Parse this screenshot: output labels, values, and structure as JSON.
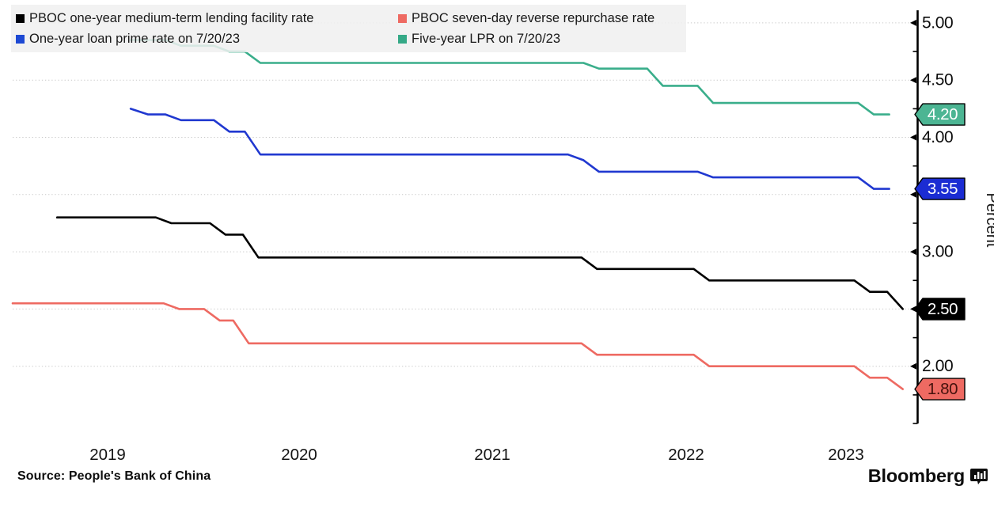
{
  "legend": {
    "items": [
      {
        "label": "PBOC one-year medium-term lending facility rate",
        "color": "#000000"
      },
      {
        "label": "One-year loan prime rate on 7/20/23",
        "color": "#1d49d3"
      },
      {
        "label": "PBOC seven-day reverse repurchase rate",
        "color": "#ee6a62"
      },
      {
        "label": "Five-year LPR on 7/20/23",
        "color": "#35a987"
      }
    ]
  },
  "chart_data": {
    "type": "line",
    "title": "",
    "xlabel": "",
    "ylabel": "Percent",
    "xlim": [
      2019.02,
      2023.65
    ],
    "ylim": [
      1.5,
      5.11
    ],
    "x_year_labels": [
      "2019",
      "2020",
      "2021",
      "2022",
      "2023"
    ],
    "y_ticks_major": [
      5.0,
      4.5,
      4.0,
      3.5,
      3.0,
      2.5,
      2.0
    ],
    "y_ticks_minor": [
      4.75,
      4.25,
      3.75,
      3.25,
      2.75,
      2.25,
      1.75,
      1.5
    ],
    "grid": "horizontal dotted at 0.50 steps",
    "legend_position": "top-left overlay",
    "axis_side": "right",
    "series": [
      {
        "name": "PBOC one-year medium-term lending facility rate",
        "color": "#000000",
        "end_label": {
          "text": "2.50",
          "value": 2.5,
          "bg": "#000000",
          "fg": "#ffffff"
        },
        "points": [
          [
            2019.25,
            3.3
          ],
          [
            2019.76,
            3.3
          ],
          [
            2019.84,
            3.25
          ],
          [
            2020.04,
            3.25
          ],
          [
            2020.12,
            3.15
          ],
          [
            2020.21,
            3.15
          ],
          [
            2020.29,
            2.95
          ],
          [
            2021.96,
            2.95
          ],
          [
            2022.04,
            2.85
          ],
          [
            2022.54,
            2.85
          ],
          [
            2022.62,
            2.75
          ],
          [
            2023.37,
            2.75
          ],
          [
            2023.45,
            2.65
          ],
          [
            2023.54,
            2.65
          ],
          [
            2023.62,
            2.5
          ]
        ]
      },
      {
        "name": "PBOC seven-day reverse repurchase rate",
        "color": "#ee6a62",
        "end_label": {
          "text": "1.80",
          "value": 1.8,
          "bg": "#ee6a62",
          "fg": "#46120d"
        },
        "points": [
          [
            2019.02,
            2.55
          ],
          [
            2019.8,
            2.55
          ],
          [
            2019.88,
            2.5
          ],
          [
            2020.01,
            2.5
          ],
          [
            2020.09,
            2.4
          ],
          [
            2020.16,
            2.4
          ],
          [
            2020.24,
            2.2
          ],
          [
            2021.96,
            2.2
          ],
          [
            2022.04,
            2.1
          ],
          [
            2022.54,
            2.1
          ],
          [
            2022.62,
            2.0
          ],
          [
            2023.37,
            2.0
          ],
          [
            2023.45,
            1.9
          ],
          [
            2023.54,
            1.9
          ],
          [
            2023.62,
            1.8
          ]
        ]
      },
      {
        "name": "One-year loan prime rate on 7/20/23",
        "color": "#2038d0",
        "end_label": {
          "text": "3.55",
          "value": 3.55,
          "bg": "#1b2cd3",
          "fg": "#ffffff"
        },
        "points": [
          [
            2019.63,
            4.25
          ],
          [
            2019.72,
            4.2
          ],
          [
            2019.81,
            4.2
          ],
          [
            2019.89,
            4.15
          ],
          [
            2020.06,
            4.15
          ],
          [
            2020.14,
            4.05
          ],
          [
            2020.22,
            4.05
          ],
          [
            2020.3,
            3.85
          ],
          [
            2021.89,
            3.85
          ],
          [
            2021.97,
            3.8
          ],
          [
            2022.05,
            3.7
          ],
          [
            2022.56,
            3.7
          ],
          [
            2022.64,
            3.65
          ],
          [
            2023.39,
            3.65
          ],
          [
            2023.47,
            3.55
          ],
          [
            2023.55,
            3.55
          ]
        ]
      },
      {
        "name": "Five-year LPR on 7/20/23",
        "color": "#3aae8b",
        "end_label": {
          "text": "4.20",
          "value": 4.2,
          "bg": "#4cb593",
          "fg": "#ffffff"
        },
        "points": [
          [
            2019.63,
            4.85
          ],
          [
            2019.81,
            4.85
          ],
          [
            2019.89,
            4.8
          ],
          [
            2020.06,
            4.8
          ],
          [
            2020.14,
            4.75
          ],
          [
            2020.22,
            4.75
          ],
          [
            2020.3,
            4.65
          ],
          [
            2021.97,
            4.65
          ],
          [
            2022.05,
            4.6
          ],
          [
            2022.3,
            4.6
          ],
          [
            2022.38,
            4.45
          ],
          [
            2022.56,
            4.45
          ],
          [
            2022.64,
            4.3
          ],
          [
            2023.39,
            4.3
          ],
          [
            2023.47,
            4.2
          ],
          [
            2023.55,
            4.2
          ]
        ]
      }
    ]
  },
  "source": {
    "label": "Source: People's Bank of China"
  },
  "branding": {
    "logo_text": "Bloomberg",
    "logo_icon": "bloomberg-chart-icon"
  },
  "colors": {
    "grid": "#c9c9c9",
    "axis": "#000000",
    "tick_label": "#0c0c0c",
    "legend_bg": "#f0f0f0"
  }
}
